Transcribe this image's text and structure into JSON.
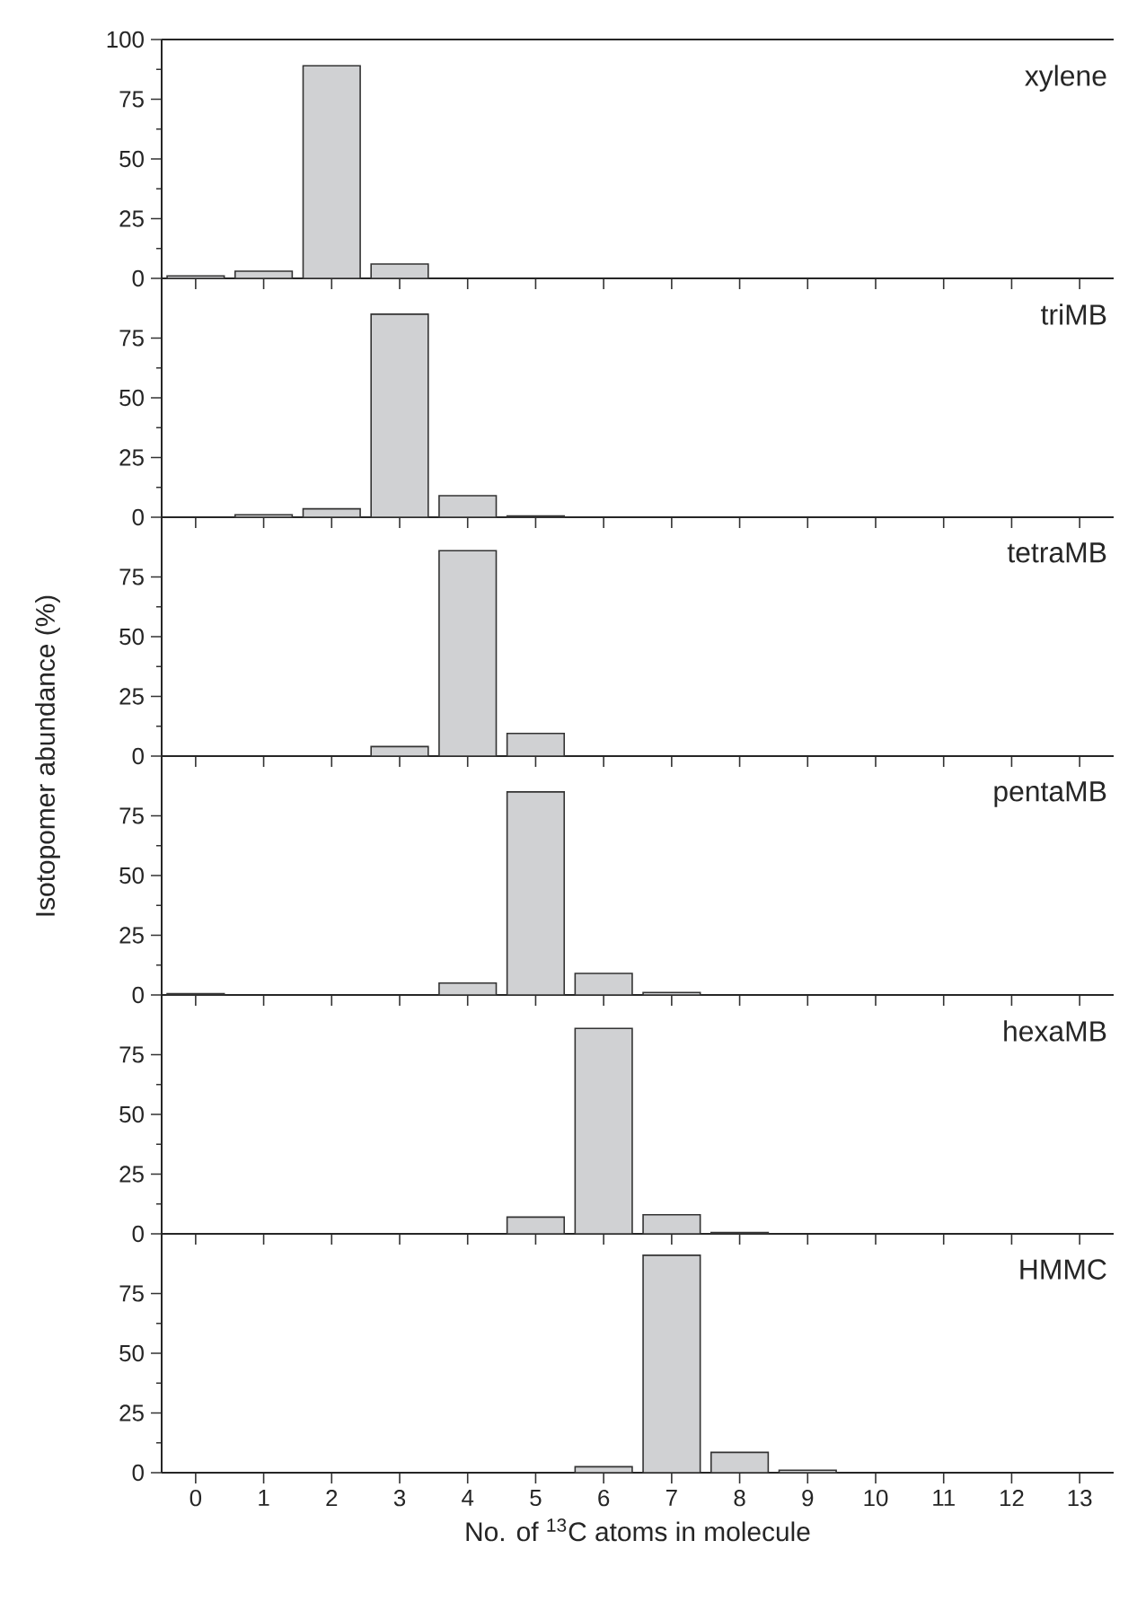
{
  "chart_data": [
    {
      "type": "bar",
      "categories": [
        "0",
        "1",
        "2",
        "3",
        "4",
        "5",
        "6",
        "7",
        "8",
        "9",
        "10",
        "11",
        "12",
        "13"
      ],
      "values": [
        1,
        3,
        89,
        6,
        0,
        0,
        0,
        0,
        0,
        0,
        0,
        0,
        0,
        0
      ],
      "color": "#d0d1d3",
      "ylim": [
        0,
        100
      ],
      "yticks": [
        0,
        25,
        50,
        75,
        100
      ],
      "annotations": [
        "xylene"
      ],
      "tick_labels": "y"
    },
    {
      "type": "bar",
      "categories": [
        "0",
        "1",
        "2",
        "3",
        "4",
        "5",
        "6",
        "7",
        "8",
        "9",
        "10",
        "11",
        "12",
        "13"
      ],
      "values": [
        0,
        1,
        3.5,
        85,
        9,
        0.5,
        0,
        0,
        0,
        0,
        0,
        0,
        0,
        0
      ],
      "color": "#d0d1d3",
      "ylim": [
        0,
        100
      ],
      "yticks": [
        0,
        25,
        50,
        75
      ],
      "annotations": [
        "triMB"
      ],
      "tick_labels": "y"
    },
    {
      "type": "bar",
      "categories": [
        "0",
        "1",
        "2",
        "3",
        "4",
        "5",
        "6",
        "7",
        "8",
        "9",
        "10",
        "11",
        "12",
        "13"
      ],
      "values": [
        0,
        0,
        0,
        4,
        86,
        9.5,
        0,
        0,
        0,
        0,
        0,
        0,
        0,
        0
      ],
      "color": "#d0d1d3",
      "ylim": [
        0,
        100
      ],
      "yticks": [
        0,
        25,
        50,
        75
      ],
      "annotations": [
        "tetraMB"
      ],
      "tick_labels": "y",
      "ylabel": "Isotopomer abundance (%)"
    },
    {
      "type": "bar",
      "categories": [
        "0",
        "1",
        "2",
        "3",
        "4",
        "5",
        "6",
        "7",
        "8",
        "9",
        "10",
        "11",
        "12",
        "13"
      ],
      "values": [
        0.5,
        0,
        0,
        0,
        5,
        85,
        9,
        1,
        0,
        0,
        0,
        0,
        0,
        0
      ],
      "color": "#d0d1d3",
      "ylim": [
        0,
        100
      ],
      "yticks": [
        0,
        25,
        50,
        75
      ],
      "annotations": [
        "pentaMB"
      ],
      "tick_labels": "y"
    },
    {
      "type": "bar",
      "categories": [
        "0",
        "1",
        "2",
        "3",
        "4",
        "5",
        "6",
        "7",
        "8",
        "9",
        "10",
        "11",
        "12",
        "13"
      ],
      "values": [
        0,
        0,
        0,
        0,
        0,
        7,
        86,
        8,
        0.5,
        0,
        0,
        0,
        0,
        0
      ],
      "color": "#d0d1d3",
      "ylim": [
        0,
        100
      ],
      "yticks": [
        0,
        25,
        50,
        75
      ],
      "annotations": [
        "hexaMB"
      ],
      "tick_labels": "y"
    },
    {
      "type": "bar",
      "categories": [
        "0",
        "1",
        "2",
        "3",
        "4",
        "5",
        "6",
        "7",
        "8",
        "9",
        "10",
        "11",
        "12",
        "13"
      ],
      "values": [
        0,
        0,
        0,
        0,
        0,
        0,
        2.5,
        91,
        8.5,
        1,
        0,
        0,
        0,
        0
      ],
      "color": "#d0d1d3",
      "ylim": [
        0,
        100
      ],
      "yticks": [
        0,
        25,
        50,
        75
      ],
      "annotations": [
        "HMMC"
      ],
      "xlabel": "No. of $^{13}$C atoms in molecule"
    }
  ]
}
